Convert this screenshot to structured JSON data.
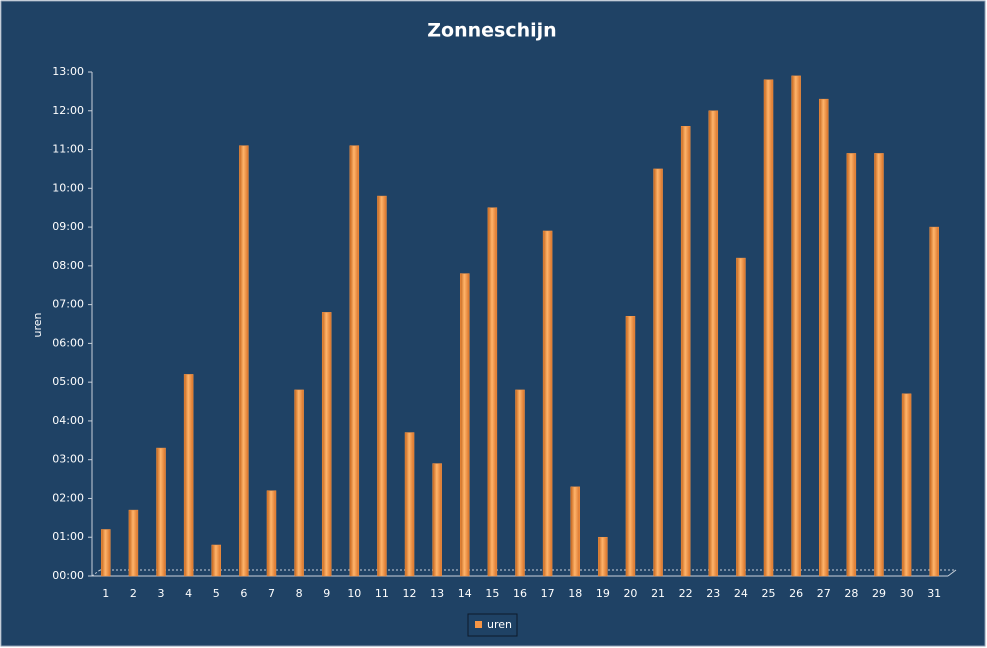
{
  "chart_data": {
    "type": "bar",
    "title": "Zonneschijn",
    "y_label": "uren",
    "categories": [
      "1",
      "2",
      "3",
      "4",
      "5",
      "6",
      "7",
      "8",
      "9",
      "10",
      "11",
      "12",
      "13",
      "14",
      "15",
      "16",
      "17",
      "18",
      "19",
      "20",
      "21",
      "22",
      "23",
      "24",
      "25",
      "26",
      "27",
      "28",
      "29",
      "30",
      "31"
    ],
    "series": [
      {
        "name": "uren",
        "color": "#f79646",
        "values": [
          1.2,
          1.7,
          3.3,
          5.2,
          0.8,
          11.1,
          2.2,
          4.8,
          6.8,
          11.1,
          9.8,
          3.7,
          2.9,
          7.8,
          9.5,
          4.8,
          8.9,
          2.3,
          1.0,
          6.7,
          10.5,
          11.6,
          12.0,
          8.2,
          12.8,
          12.9,
          12.3,
          10.9,
          10.9,
          4.7,
          9.0
        ]
      }
    ],
    "ylim": [
      0,
      13
    ],
    "yticks": [
      {
        "value": 0,
        "label": "00:00"
      },
      {
        "value": 1,
        "label": "01:00"
      },
      {
        "value": 2,
        "label": "02:00"
      },
      {
        "value": 3,
        "label": "03:00"
      },
      {
        "value": 4,
        "label": "04:00"
      },
      {
        "value": 5,
        "label": "05:00"
      },
      {
        "value": 6,
        "label": "06:00"
      },
      {
        "value": 7,
        "label": "07:00"
      },
      {
        "value": 8,
        "label": "08:00"
      },
      {
        "value": 9,
        "label": "09:00"
      },
      {
        "value": 10,
        "label": "10:00"
      },
      {
        "value": 11,
        "label": "11:00"
      },
      {
        "value": 12,
        "label": "12:00"
      },
      {
        "value": 13,
        "label": "13:00"
      }
    ],
    "grid": false
  }
}
